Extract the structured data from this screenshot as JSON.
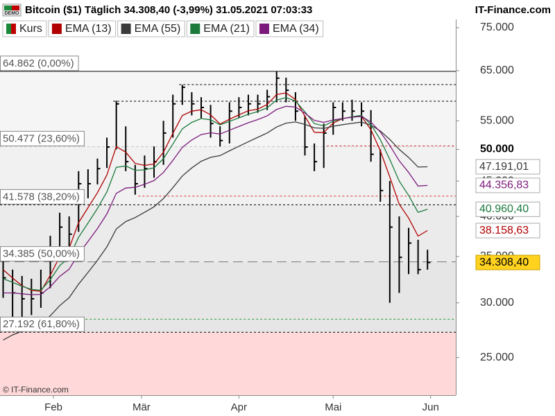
{
  "header": {
    "badge": "DEMO",
    "title": "Bitcoin ($1) Täglich 34.308,40 (-3,99%) 31.05.2021 07:03:33",
    "brand": "IT-Finance.com"
  },
  "footer": "© IT-Finance.com",
  "chart_data": {
    "type": "ohlc",
    "log_scale": true,
    "xlim": [
      -1,
      144
    ],
    "xticks": [
      {
        "value": 16,
        "label": "Feb"
      },
      {
        "value": 44,
        "label": "Mär"
      },
      {
        "value": 75,
        "label": "Apr"
      },
      {
        "value": 105,
        "label": "Mai"
      },
      {
        "value": 136,
        "label": "Jun"
      }
    ],
    "ylim": [
      22050,
      77100
    ],
    "yticks": [
      {
        "value": 75000,
        "label": "75.000"
      },
      {
        "value": 65000,
        "label": "65.000"
      },
      {
        "value": 55000,
        "label": "55.000"
      },
      {
        "value": 50000,
        "label": "50.000",
        "bold": true
      },
      {
        "value": 45000,
        "label": "45.000"
      },
      {
        "value": 40000,
        "label": "40.000"
      },
      {
        "value": 35000,
        "label": "35.000"
      },
      {
        "value": 30000,
        "label": "30.000"
      },
      {
        "value": 25000,
        "label": "25.000"
      }
    ],
    "x": [
      0,
      3,
      6,
      9,
      12,
      15,
      18,
      21,
      24,
      27,
      30,
      33,
      36,
      39,
      42,
      45,
      48,
      51,
      54,
      57,
      60,
      63,
      66,
      69,
      72,
      75,
      78,
      81,
      84,
      87,
      90,
      93,
      96,
      99,
      102,
      105,
      108,
      111,
      114,
      117,
      120,
      123,
      126,
      129,
      132,
      135
    ],
    "series": [
      {
        "name": "Kurs",
        "color": "#000000",
        "last_label": "34.308,40",
        "label_fill": "#ffd21f",
        "values": [
          32600,
          31000,
          30400,
          30400,
          31000,
          35800,
          38600,
          37700,
          44600,
          44600,
          46900,
          50400,
          58200,
          48000,
          44600,
          46900,
          48000,
          52800,
          58200,
          61500,
          58200,
          57500,
          54500,
          51500,
          56800,
          57500,
          58200,
          58200,
          59600,
          63400,
          60900,
          56800,
          50400,
          48000,
          52800,
          57500,
          56800,
          56800,
          56800,
          49200,
          43600,
          38600,
          34900,
          36600,
          33500,
          34308.4
        ],
        "high": [
          35000,
          33500,
          32800,
          32500,
          33500,
          37500,
          40500,
          40000,
          46500,
          46800,
          48500,
          52000,
          58800,
          54000,
          47500,
          49000,
          50500,
          55000,
          60000,
          62000,
          60500,
          59500,
          58000,
          54000,
          58500,
          59500,
          60000,
          60000,
          61000,
          64862,
          63500,
          60500,
          56000,
          51000,
          54500,
          58500,
          58500,
          59000,
          58500,
          57000,
          50000,
          45000,
          40000,
          38500,
          37000,
          35800
        ],
        "low": [
          30500,
          28500,
          27192,
          28800,
          29500,
          31500,
          36000,
          35500,
          38000,
          42500,
          44500,
          47000,
          50000,
          46500,
          43000,
          44000,
          45500,
          47500,
          52000,
          58000,
          56000,
          55500,
          52000,
          50500,
          51000,
          55500,
          56000,
          56500,
          57000,
          58500,
          58500,
          55000,
          49000,
          46500,
          47000,
          52500,
          55000,
          55000,
          54000,
          48000,
          42000,
          30000,
          31000,
          33000,
          33000,
          33500
        ]
      },
      {
        "name": "EMA (13)",
        "color": "#b00000",
        "last_label": "38.158,63",
        "values": [
          33500,
          32575,
          31770,
          31263,
          31166,
          32880,
          34996,
          35996,
          39180,
          41185,
          43300,
          45927,
          50468,
          49555,
          47722,
          47418,
          47633,
          49545,
          52747,
          55986,
          56805,
          57062,
          56114,
          54407,
          55292,
          56109,
          56883,
          57170,
          58069,
          60041,
          60359,
          59042,
          55844,
          52942,
          52889,
          54595,
          55411,
          55713,
          55826,
          53374,
          49758,
          45630,
          41660,
          39788,
          37461,
          38158.63
        ]
      },
      {
        "name": "EMA (55)",
        "color": "#3a3a3a",
        "last_label": "47.191,01",
        "values": [
          26500,
          26950,
          27295,
          27606,
          27945,
          28731,
          29718,
          30516,
          31924,
          33192,
          34563,
          36147,
          38352,
          39317,
          39845,
          40551,
          41296,
          42446,
          44021,
          45769,
          47012,
          48061,
          48705,
          48985,
          49766,
          50540,
          51306,
          52055,
          52810,
          53869,
          54572,
          54795,
          54355,
          53720,
          53628,
          54015,
          54294,
          54544,
          54770,
          54213,
          53152,
          51697,
          50017,
          48675,
          47158,
          47191.01
        ]
      },
      {
        "name": "EMA (21)",
        "color": "#1b7a3c",
        "last_label": "40.960,40",
        "values": [
          32500,
          32125,
          31694,
          31370,
          31278,
          32408,
          33956,
          34892,
          37319,
          39139,
          41079,
          43409,
          47107,
          47330,
          46648,
          46711,
          47033,
          48475,
          50906,
          53555,
          54716,
          55412,
          55184,
          54263,
          54897,
          55548,
          56211,
          56708,
          57431,
          58923,
          59417,
          58763,
          56672,
          54504,
          54078,
          54934,
          55400,
          55750,
          56013,
          54310,
          51633,
          48375,
          45006,
          42905,
          40554,
          40960.4
        ]
      },
      {
        "name": "EMA (34)",
        "color": "#7b1a7b",
        "last_label": "44.356,83",
        "values": [
          31000,
          31000,
          30904,
          30823,
          30851,
          31643,
          32756,
          33547,
          35315,
          36801,
          38417,
          40334,
          43193,
          43962,
          44064,
          44518,
          45075,
          46311,
          48213,
          50339,
          51597,
          52541,
          52855,
          52638,
          53304,
          53975,
          54651,
          55219,
          55920,
          57117,
          57722,
          57575,
          56427,
          55079,
          54714,
          55160,
          55423,
          55643,
          55828,
          54768,
          52981,
          50680,
          48155,
          46306,
          44257,
          44356.83
        ]
      }
    ],
    "fib_levels": [
      {
        "value": 64862,
        "label": "64.862 (0,00%)"
      },
      {
        "value": 50477,
        "label": "50.477 (23,60%)"
      },
      {
        "value": 41578,
        "label": "41.578 (38,20%)"
      },
      {
        "value": 34385,
        "label": "34.385 (50,00%)"
      },
      {
        "value": 27192,
        "label": "27.192 (61,80%)"
      }
    ],
    "fib_zone_colors": [
      "#f5f5f5",
      "#f1f1f1",
      "#ebebeb",
      "#e6e6e6",
      "#ffd9d9"
    ],
    "fib_line_colors": [
      "#000000",
      "#c8c8c8",
      "#000000",
      "#777777",
      "#000000"
    ],
    "fib_line_dash": [
      "none",
      "4 3",
      "3 3",
      "14 7",
      "3 3"
    ],
    "levels": [
      {
        "value": 62060,
        "from": 56,
        "color": "#000000"
      },
      {
        "value": 58700,
        "from": 35,
        "color": "#000000"
      },
      {
        "value": 50600,
        "from": 103,
        "color": "#e03030"
      },
      {
        "value": 42800,
        "from": 43,
        "color": "#e03030"
      },
      {
        "value": 28400,
        "from": 5,
        "color": "#2a9a3a"
      }
    ]
  }
}
